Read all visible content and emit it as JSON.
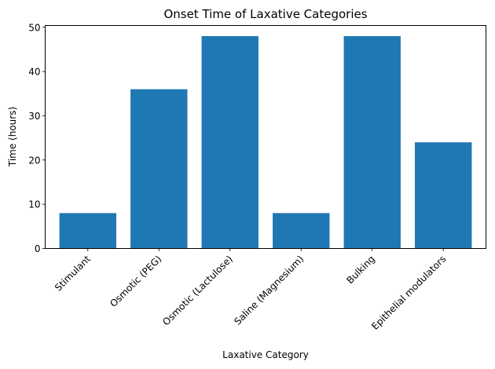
{
  "chart_data": {
    "type": "bar",
    "title": "Onset Time of Laxative Categories",
    "xlabel": "Laxative Category",
    "ylabel": "Time (hours)",
    "categories": [
      "Stimulant",
      "Osmotic (PEG)",
      "Osmotic (Lactulose)",
      "Saline (Magnesium)",
      "Bulking",
      "Epithelial modulators"
    ],
    "values": [
      8,
      36,
      48,
      8,
      48,
      24
    ],
    "ylim": [
      0,
      50.4
    ],
    "yticks": [
      0,
      10,
      20,
      30,
      40,
      50
    ],
    "bar_color": "#1f77b4",
    "grid": false,
    "legend": "none"
  }
}
